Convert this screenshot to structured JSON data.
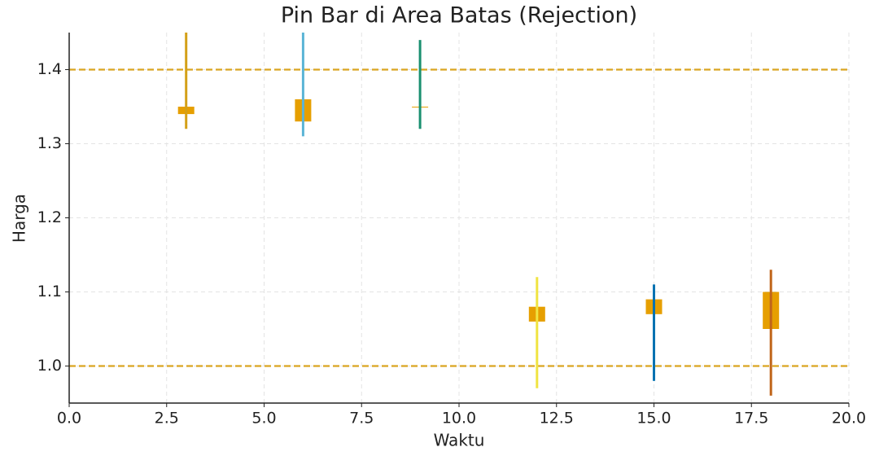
{
  "chart_data": {
    "type": "candlestick",
    "title": "Pin Bar di Area Batas (Rejection)",
    "x_label": "Waktu",
    "y_label": "Harga",
    "x": [
      3,
      6,
      9,
      12,
      15,
      18
    ],
    "low": [
      1.32,
      1.31,
      1.32,
      0.97,
      0.98,
      0.96
    ],
    "high": [
      1.45,
      1.45,
      1.44,
      1.12,
      1.11,
      1.13
    ],
    "body_low": [
      1.34,
      1.33,
      1.35,
      1.06,
      1.07,
      1.05
    ],
    "body_high": [
      1.35,
      1.36,
      1.35,
      1.08,
      1.09,
      1.1
    ],
    "wick_colors": [
      "#d4a017",
      "#5ab4d6",
      "#1a9070",
      "#f0e442",
      "#0072b2",
      "#c0651a"
    ],
    "body_color": "#e69f00",
    "hlines": [
      1.4,
      1.0
    ],
    "hline_color": "#daa520",
    "xlim": [
      0,
      20
    ],
    "ylim": [
      0.95,
      1.45
    ],
    "xticks": [
      {
        "value": 0,
        "label": "0.0"
      },
      2.5,
      {
        "value": 5,
        "label": "5.0"
      },
      7.5,
      {
        "value": 10,
        "label": "10.0"
      },
      12.5,
      {
        "value": 15,
        "label": "15.0"
      },
      17.5,
      {
        "value": 20,
        "label": "20.0"
      }
    ],
    "yticks": [
      {
        "value": 1,
        "label": "1.0"
      },
      1.1,
      1.2,
      1.3,
      1.4
    ],
    "grid": true
  }
}
